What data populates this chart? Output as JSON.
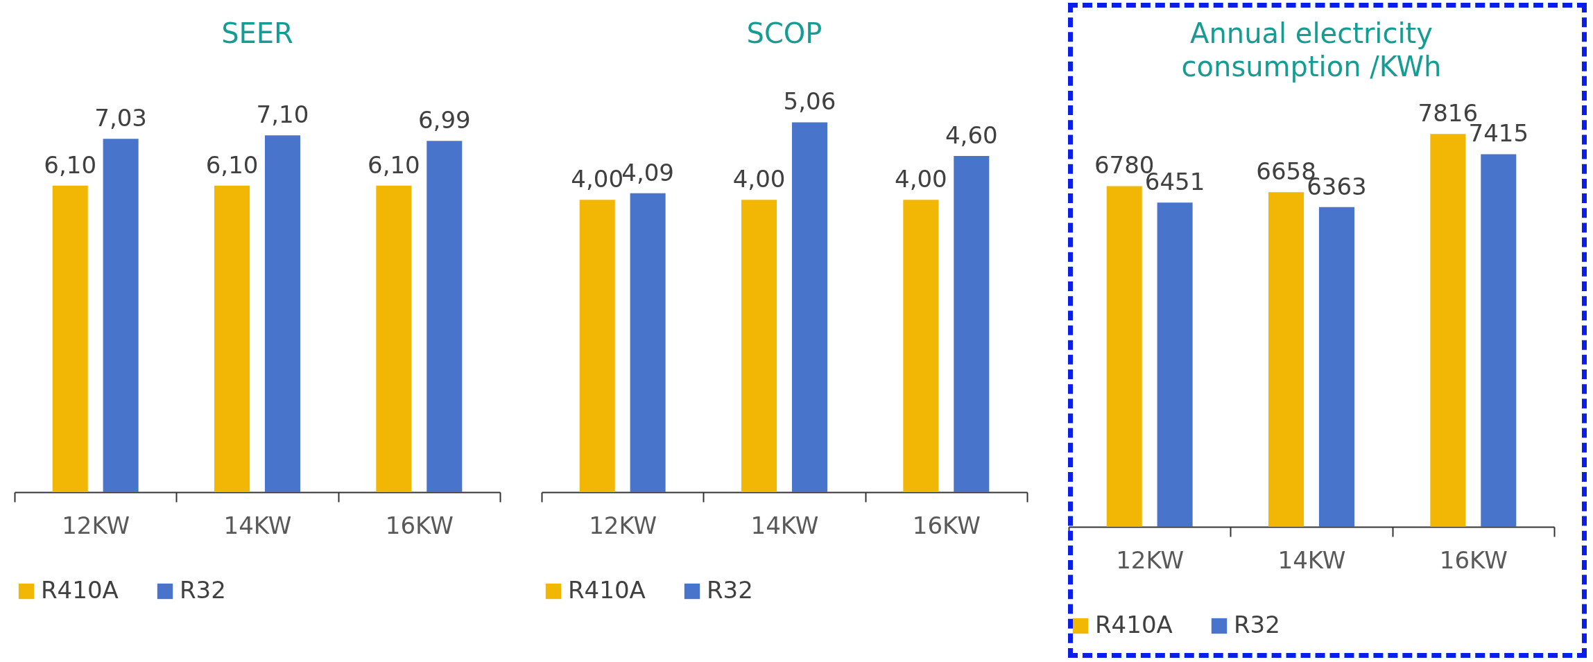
{
  "chart_data": [
    {
      "type": "bar",
      "title": "SEER",
      "categories": [
        "12KW",
        "14KW",
        "16KW"
      ],
      "series": [
        {
          "name": "R410A",
          "color": "#f2b705",
          "values": [
            6.1,
            6.1,
            6.1
          ],
          "value_labels": [
            "6,10",
            "6,10",
            "6,10"
          ]
        },
        {
          "name": "R32",
          "color": "#4874cb",
          "values": [
            7.03,
            7.1,
            6.99
          ],
          "value_labels": [
            "7,03",
            "7,10",
            "6,99"
          ]
        }
      ],
      "legend": "bottom",
      "tick_labels": "x"
    },
    {
      "type": "bar",
      "title": "SCOP",
      "categories": [
        "12KW",
        "14KW",
        "16KW"
      ],
      "series": [
        {
          "name": "R410A",
          "color": "#f2b705",
          "values": [
            4.0,
            4.0,
            4.0
          ],
          "value_labels": [
            "4,00",
            "4,00",
            "4,00"
          ]
        },
        {
          "name": "R32",
          "color": "#4874cb",
          "values": [
            4.09,
            5.06,
            4.6
          ],
          "value_labels": [
            "4,09",
            "5,06",
            "4,60"
          ]
        }
      ],
      "legend": "bottom",
      "tick_labels": "x"
    },
    {
      "type": "bar",
      "title": "Annual electricity consumption /KWh",
      "categories": [
        "12KW",
        "14KW",
        "16KW"
      ],
      "series": [
        {
          "name": "R410A",
          "color": "#f2b705",
          "values": [
            6780,
            6658,
            7816
          ]
        },
        {
          "name": "R32",
          "color": "#4874cb",
          "values": [
            6451,
            6363,
            7415
          ]
        }
      ],
      "data_labels": true,
      "legend": "bottom",
      "tick_labels": "x"
    }
  ]
}
